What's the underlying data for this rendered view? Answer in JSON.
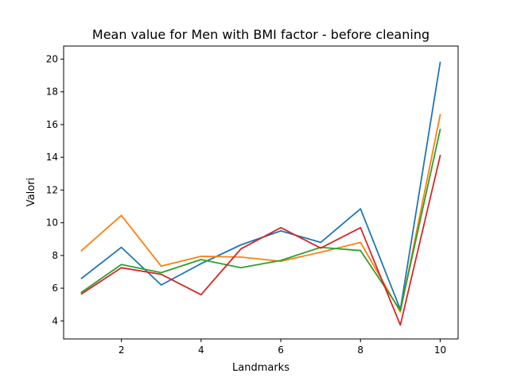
{
  "chart_data": {
    "type": "line",
    "title": "Mean value for Men with BMI factor - before cleaning",
    "xlabel": "Landmarks",
    "ylabel": "Valori",
    "xlim": [
      0.55,
      10.45
    ],
    "ylim": [
      2.9,
      20.8
    ],
    "xticks": [
      2,
      4,
      6,
      8,
      10
    ],
    "yticks": [
      4,
      6,
      8,
      10,
      12,
      14,
      16,
      18,
      20
    ],
    "grid": false,
    "x": [
      1,
      2,
      3,
      4,
      5,
      6,
      7,
      8,
      9,
      10
    ],
    "series": [
      {
        "color": "#1f77b4",
        "values": [
          6.6,
          8.5,
          6.2,
          7.5,
          8.65,
          9.5,
          8.8,
          10.85,
          4.7,
          19.8
        ]
      },
      {
        "color": "#ff7f0e",
        "values": [
          8.3,
          10.45,
          7.35,
          7.95,
          7.9,
          7.65,
          8.2,
          8.8,
          4.55,
          16.6
        ]
      },
      {
        "color": "#2ca02c",
        "values": [
          5.75,
          7.45,
          6.95,
          7.75,
          7.25,
          7.7,
          8.5,
          8.3,
          4.65,
          15.7
        ]
      },
      {
        "color": "#d62728",
        "values": [
          5.65,
          7.25,
          6.85,
          5.6,
          8.4,
          9.7,
          8.45,
          9.7,
          3.75,
          14.1
        ]
      }
    ]
  }
}
